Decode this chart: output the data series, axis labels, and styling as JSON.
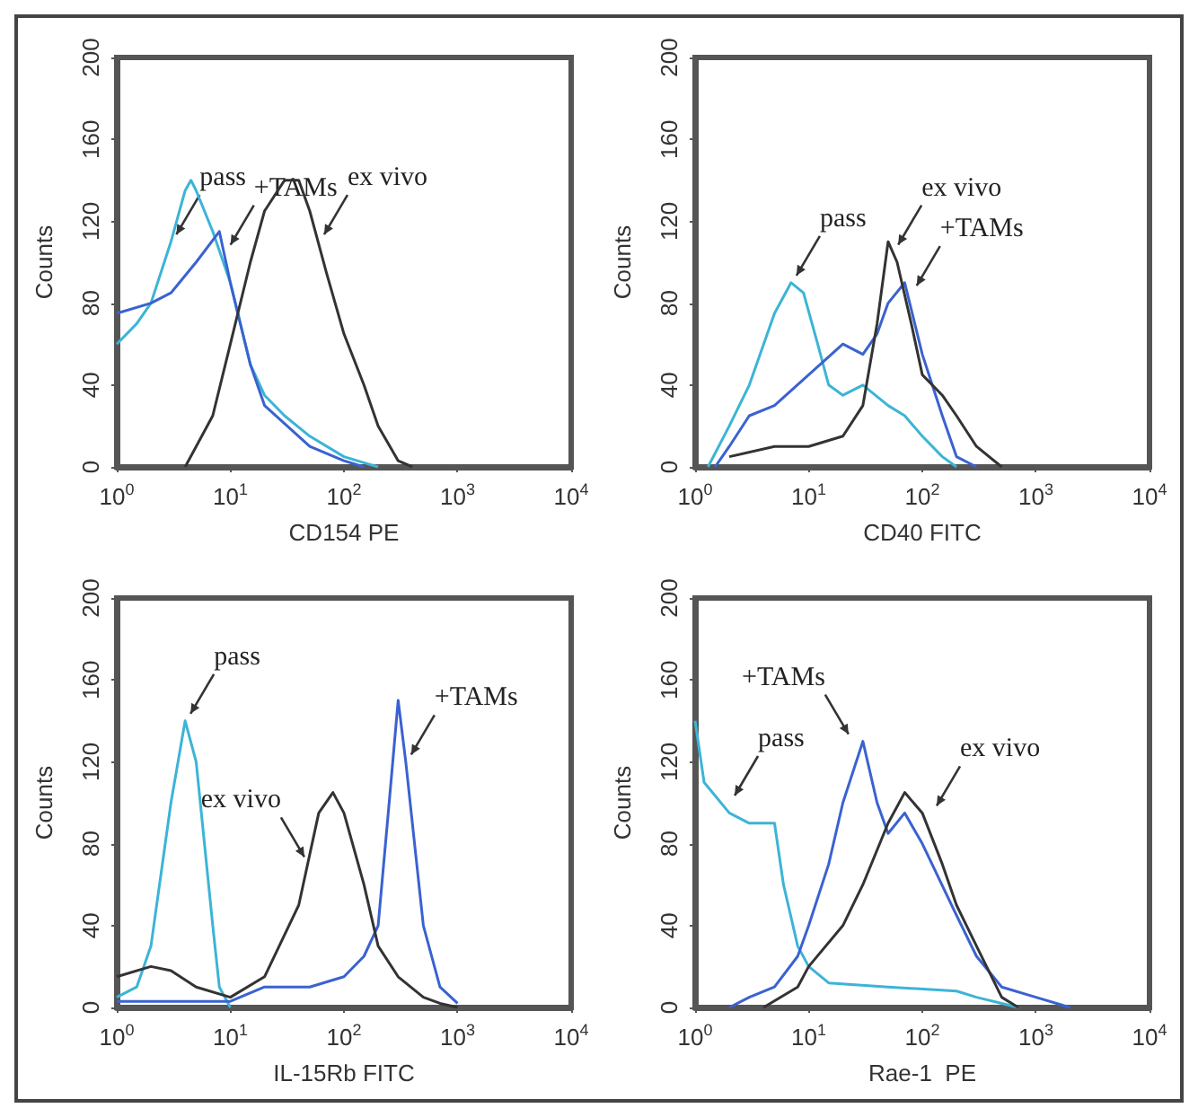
{
  "chart_data": [
    {
      "type": "line",
      "xlabel": "CD154 PE",
      "ylabel": "Counts",
      "log": "x",
      "xlim": [
        1,
        10000
      ],
      "ylim": [
        0,
        200
      ],
      "xticks": [
        {
          "value": 1,
          "label": "10$^{0}$"
        },
        {
          "value": 10,
          "label": "10$^{1}$"
        },
        {
          "value": 100,
          "label": "10$^{2}$"
        },
        {
          "value": 1000,
          "label": "10$^{3}$"
        },
        {
          "value": 10000,
          "label": "10$^{4}$"
        }
      ],
      "yticks": [
        0,
        40,
        80,
        120,
        160,
        200
      ],
      "series": [
        {
          "color": "#3cb4d6",
          "x": [
            1,
            1.5,
            2,
            3,
            4,
            4.5,
            5,
            7,
            10,
            15,
            20,
            30,
            50,
            100,
            150,
            200
          ],
          "values": [
            60,
            70,
            80,
            110,
            135,
            140,
            135,
            115,
            90,
            50,
            35,
            25,
            15,
            5,
            2,
            0
          ]
        },
        {
          "color": "#3a62d0",
          "x": [
            1,
            2,
            3,
            5,
            8,
            10,
            15,
            20,
            50,
            100,
            150
          ],
          "values": [
            75,
            80,
            85,
            100,
            115,
            90,
            50,
            30,
            10,
            3,
            0
          ]
        },
        {
          "color": "#333333",
          "x": [
            4,
            7,
            10,
            15,
            20,
            30,
            40,
            50,
            70,
            100,
            150,
            200,
            300,
            400
          ],
          "values": [
            0,
            25,
            60,
            100,
            125,
            140,
            140,
            125,
            95,
            65,
            40,
            20,
            3,
            0
          ]
        }
      ],
      "annotations": [
        {
          "text": "pass",
          "x": 3,
          "y": 110
        },
        {
          "text": "+TAMs",
          "x": 9,
          "y": 105
        },
        {
          "text": "ex vivo",
          "x": 60,
          "y": 110
        }
      ]
    },
    {
      "type": "line",
      "xlabel": "CD40 FITC",
      "ylabel": "Counts",
      "log": "x",
      "xlim": [
        1,
        10000
      ],
      "ylim": [
        0,
        200
      ],
      "xticks": [
        {
          "value": 1,
          "label": "10$^{0}$"
        },
        {
          "value": 10,
          "label": "10$^{1}$"
        },
        {
          "value": 100,
          "label": "10$^{2}$"
        },
        {
          "value": 1000,
          "label": "10$^{3}$"
        },
        {
          "value": 10000,
          "label": "10$^{4}$"
        }
      ],
      "yticks": [
        0,
        40,
        80,
        120,
        160,
        200
      ],
      "series": [
        {
          "color": "#3cb4d6",
          "x": [
            1.3,
            2,
            3,
            5,
            7,
            9,
            12,
            15,
            20,
            30,
            50,
            70,
            100,
            150,
            200
          ],
          "values": [
            0,
            20,
            40,
            75,
            90,
            85,
            60,
            40,
            35,
            40,
            30,
            25,
            15,
            5,
            0
          ]
        },
        {
          "color": "#3a62d0",
          "x": [
            1.5,
            2,
            3,
            5,
            10,
            20,
            30,
            40,
            50,
            70,
            100,
            150,
            200,
            300
          ],
          "values": [
            0,
            10,
            25,
            30,
            45,
            60,
            55,
            65,
            80,
            90,
            55,
            25,
            5,
            0
          ]
        },
        {
          "color": "#333333",
          "x": [
            2,
            5,
            10,
            20,
            30,
            40,
            50,
            60,
            80,
            100,
            150,
            200,
            300,
            500
          ],
          "values": [
            5,
            10,
            10,
            15,
            30,
            70,
            110,
            100,
            70,
            45,
            35,
            25,
            10,
            0
          ]
        }
      ],
      "annotations": [
        {
          "text": "pass",
          "x": 7,
          "y": 90
        },
        {
          "text": "ex vivo",
          "x": 55,
          "y": 105
        },
        {
          "text": "+TAMs",
          "x": 80,
          "y": 85
        }
      ]
    },
    {
      "type": "line",
      "xlabel": "IL-15Rb FITC",
      "ylabel": "Counts",
      "log": "x",
      "xlim": [
        1,
        10000
      ],
      "ylim": [
        0,
        200
      ],
      "xticks": [
        {
          "value": 1,
          "label": "10$^{0}$"
        },
        {
          "value": 10,
          "label": "10$^{1}$"
        },
        {
          "value": 100,
          "label": "10$^{2}$"
        },
        {
          "value": 1000,
          "label": "10$^{3}$"
        },
        {
          "value": 10000,
          "label": "10$^{4}$"
        }
      ],
      "yticks": [
        0,
        40,
        80,
        120,
        160,
        200
      ],
      "series": [
        {
          "color": "#3cb4d6",
          "x": [
            1,
            1.5,
            2,
            3,
            4,
            5,
            7,
            8,
            10
          ],
          "values": [
            5,
            10,
            30,
            100,
            140,
            120,
            40,
            10,
            0
          ]
        },
        {
          "color": "#3a62d0",
          "x": [
            1,
            10,
            20,
            50,
            100,
            150,
            200,
            250,
            300,
            350,
            500,
            700,
            1000
          ],
          "values": [
            3,
            3,
            10,
            10,
            15,
            25,
            40,
            100,
            150,
            120,
            40,
            10,
            2
          ]
        },
        {
          "color": "#333333",
          "x": [
            1,
            2,
            3,
            5,
            10,
            20,
            40,
            60,
            80,
            100,
            150,
            200,
            300,
            500,
            700,
            1000
          ],
          "values": [
            15,
            20,
            18,
            10,
            5,
            15,
            50,
            95,
            105,
            95,
            60,
            30,
            15,
            5,
            2,
            0
          ]
        }
      ],
      "annotations": [
        {
          "text": "ex vivo",
          "x": 50,
          "y": 70
        },
        {
          "text": "pass",
          "x": 4,
          "y": 140
        },
        {
          "text": "+TAMs",
          "x": 350,
          "y": 120
        }
      ]
    },
    {
      "type": "line",
      "xlabel": "Rae-1  PE",
      "ylabel": "Counts",
      "log": "x",
      "xlim": [
        1,
        10000
      ],
      "ylim": [
        0,
        200
      ],
      "xticks": [
        {
          "value": 1,
          "label": "10$^{0}$"
        },
        {
          "value": 10,
          "label": "10$^{1}$"
        },
        {
          "value": 100,
          "label": "10$^{2}$"
        },
        {
          "value": 1000,
          "label": "10$^{3}$"
        },
        {
          "value": 10000,
          "label": "10$^{4}$"
        }
      ],
      "yticks": [
        0,
        40,
        80,
        120,
        160,
        200
      ],
      "series": [
        {
          "color": "#3cb4d6",
          "x": [
            1,
            1.2,
            2,
            3,
            5,
            6,
            8,
            10,
            15,
            50,
            200,
            300,
            500,
            700
          ],
          "values": [
            140,
            110,
            95,
            90,
            90,
            60,
            30,
            20,
            12,
            10,
            8,
            5,
            2,
            0
          ]
        },
        {
          "color": "#3a62d0",
          "x": [
            2,
            3,
            5,
            8,
            10,
            15,
            20,
            30,
            40,
            50,
            70,
            100,
            200,
            300,
            500,
            1000,
            2000
          ],
          "values": [
            0,
            5,
            10,
            25,
            40,
            70,
            100,
            130,
            100,
            85,
            95,
            80,
            45,
            25,
            10,
            5,
            0
          ]
        },
        {
          "color": "#333333",
          "x": [
            4,
            8,
            10,
            20,
            30,
            50,
            70,
            100,
            150,
            200,
            300,
            500,
            700
          ],
          "values": [
            0,
            10,
            20,
            40,
            60,
            90,
            105,
            95,
            70,
            50,
            30,
            5,
            0
          ]
        }
      ],
      "annotations": [
        {
          "text": "pass",
          "x": 2,
          "y": 100
        },
        {
          "text": "+TAMs",
          "x": 25,
          "y": 130
        },
        {
          "text": "ex vivo",
          "x": 120,
          "y": 95
        }
      ]
    }
  ]
}
